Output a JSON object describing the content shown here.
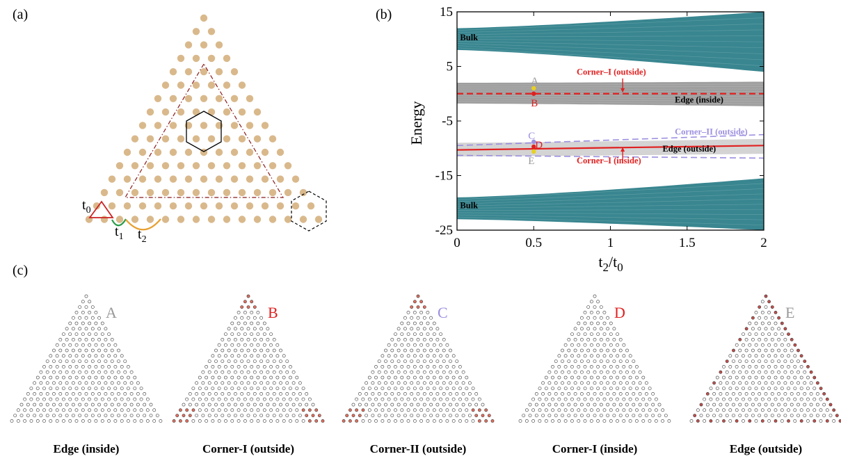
{
  "panel_a": {
    "label": "(a)",
    "hopping_labels": [
      {
        "id": "t0",
        "base": "t",
        "sub": "0"
      },
      {
        "id": "t1",
        "base": "t",
        "sub": "1"
      },
      {
        "id": "t2",
        "base": "t",
        "sub": "2"
      }
    ],
    "colors": {
      "site": "#d9b98c",
      "triangle": "#8b1a1a",
      "t0": "#cc2222",
      "t1": "#2a9d4a",
      "t2": "#e8a030"
    }
  },
  "panel_b": {
    "label": "(b)",
    "colors": {
      "bulk": "#2e7f8a",
      "edge": "#9a9a9a",
      "corner_I": "#e02020",
      "corner_II": "#9b8fe0",
      "point_A": "#e8d020",
      "point_E": "#e8d020"
    },
    "chart_data": {
      "type": "line",
      "xlabel": {
        "base": "t",
        "sub1": "2",
        "sep": "/",
        "base2": "t",
        "sub2": "0"
      },
      "ylabel": "Energy",
      "xlim": [
        0,
        2
      ],
      "ylim": [
        -25,
        15
      ],
      "xticks": [
        "0",
        "0.5",
        "1",
        "1.5",
        "2"
      ],
      "xtick_values": [
        0,
        0.5,
        1,
        1.5,
        2
      ],
      "yticks": [
        "15",
        "5",
        "-5",
        "-15",
        "-25"
      ],
      "ytick_values": [
        15,
        5,
        -5,
        -15,
        -25
      ],
      "bands": [
        {
          "name": "Bulk",
          "x": [
            0,
            2
          ],
          "top": [
            12,
            15
          ],
          "bottom": [
            8,
            4
          ]
        },
        {
          "name": "Edge (inside)",
          "x": [
            0,
            2
          ],
          "top": [
            2.0,
            2.2
          ],
          "bottom": [
            -1.8,
            -2.3
          ]
        },
        {
          "name": "Bulk",
          "x": [
            0,
            2
          ],
          "top": [
            -19,
            -15.5
          ],
          "bottom": [
            -23,
            -25
          ]
        },
        {
          "name": "Edge (outside)",
          "x": [
            0,
            2
          ],
          "top": [
            -9.0,
            -8.3
          ],
          "bottom": [
            -11.5,
            -11.0
          ]
        }
      ],
      "series": [
        {
          "name": "Corner–I (outside)",
          "x": [
            0,
            2
          ],
          "y": [
            0,
            0
          ],
          "style": "dashed"
        },
        {
          "name": "Corner–II (outside)",
          "x": [
            0,
            2
          ],
          "y": [
            -9.5,
            -7.5
          ],
          "style": "dashed"
        },
        {
          "name": "Corner–II (outside)",
          "x": [
            0,
            2
          ],
          "y": [
            -11.3,
            -11.8
          ],
          "style": "dashed"
        },
        {
          "name": "Corner–I (inside)",
          "x": [
            0,
            2
          ],
          "y": [
            -10.3,
            -9.5
          ],
          "style": "solid"
        }
      ],
      "annotations": [
        {
          "id": "bulk_top",
          "text": "Bulk",
          "x": 0.02,
          "y": 9.8,
          "bold": true
        },
        {
          "id": "bulk_bottom",
          "text": "Bulk",
          "x": 0.02,
          "y": -21.0,
          "bold": true
        },
        {
          "id": "corner1_out",
          "text": "Corner–I (outside)",
          "x": 0.78,
          "y": 3.5,
          "bold": true
        },
        {
          "id": "edge_in",
          "text": "Edge (inside)",
          "x": 1.42,
          "y": -1.6,
          "bold": true
        },
        {
          "id": "corner2_out",
          "text": "Corner–II (outside)",
          "x": 1.42,
          "y": -7.5,
          "bold": true
        },
        {
          "id": "edge_out",
          "text": "Edge (outside)",
          "x": 1.34,
          "y": -10.6,
          "bold": true
        },
        {
          "id": "corner1_in",
          "text": "Corner–I (inside)",
          "x": 0.78,
          "y": -12.8,
          "bold": true
        }
      ],
      "points": [
        {
          "label": "A",
          "x": 0.5,
          "y": 1.0
        },
        {
          "label": "B",
          "x": 0.5,
          "y": 0.0
        },
        {
          "label": "C",
          "x": 0.5,
          "y": -8.8
        },
        {
          "label": "D",
          "x": 0.5,
          "y": -9.7
        },
        {
          "label": "E",
          "x": 0.5,
          "y": -10.6
        }
      ]
    }
  },
  "panel_c": {
    "label": "(c)",
    "triangles": [
      {
        "letter": "A",
        "letter_color": "#999999",
        "caption": "Edge (inside)"
      },
      {
        "letter": "B",
        "letter_color": "#e02020",
        "caption": "Corner-I (outside)"
      },
      {
        "letter": "C",
        "letter_color": "#9b8fe0",
        "caption": "Corner-II (outside)"
      },
      {
        "letter": "D",
        "letter_color": "#e02020",
        "caption": "Corner-I (inside)"
      },
      {
        "letter": "E",
        "letter_color": "#999999",
        "caption": "Edge (outside)"
      }
    ]
  }
}
